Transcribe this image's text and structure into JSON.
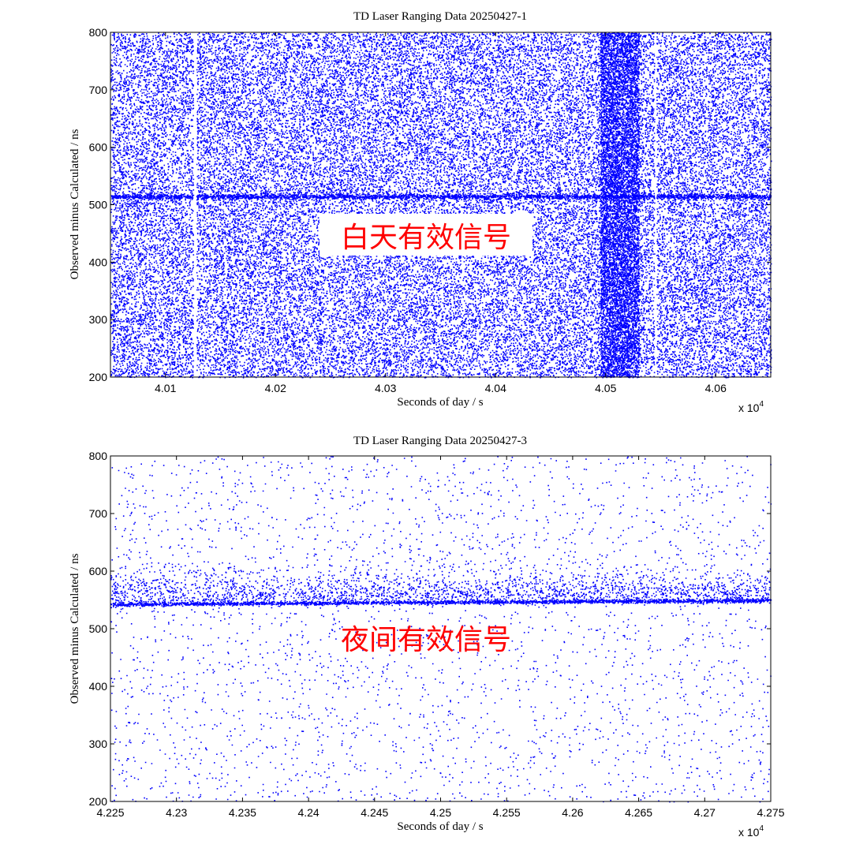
{
  "colors": {
    "points": "#0000ff",
    "annotation": "#ff0000",
    "annotation_bg": "#ffffff",
    "axes": "#000000"
  },
  "chart_data": [
    {
      "type": "scatter",
      "title": "TD Laser Ranging Data 20250427-1",
      "xlabel": "Seconds of day / s",
      "ylabel": "Observed minus Calculated / ns",
      "xlim": [
        40050,
        40650
      ],
      "ylim": [
        200,
        800
      ],
      "x_ticks": [
        40100,
        40200,
        40300,
        40400,
        40500,
        40600
      ],
      "x_tick_labels": [
        "4.01",
        "4.02",
        "4.03",
        "4.04",
        "4.05",
        "4.06"
      ],
      "y_ticks": [
        200,
        300,
        400,
        500,
        600,
        700,
        800
      ],
      "y_tick_labels": [
        "200",
        "300",
        "400",
        "500",
        "600",
        "700",
        "800"
      ],
      "x_exponent_label": "x 10",
      "x_exponent_power": "4",
      "grid": false,
      "annotation": "白天有效信号",
      "series": [
        {
          "role": "noise",
          "density": "dense",
          "gaps_x": [
            [
              40125,
              40128
            ],
            [
              40544,
              40546
            ]
          ],
          "denser_x_range": [
            40495,
            40530
          ]
        },
        {
          "role": "signal",
          "x_range": [
            40050,
            40650
          ],
          "y_start": 515,
          "y_end": 515
        }
      ]
    },
    {
      "type": "scatter",
      "title": "TD Laser Ranging Data 20250427-3",
      "xlabel": "Seconds of day / s",
      "ylabel": "Observed minus Calculated / ns",
      "xlim": [
        42250,
        42750
      ],
      "ylim": [
        200,
        800
      ],
      "x_ticks": [
        42250,
        42300,
        42350,
        42400,
        42450,
        42500,
        42550,
        42600,
        42650,
        42700,
        42750
      ],
      "x_tick_labels": [
        "4.225",
        "4.23",
        "4.235",
        "4.24",
        "4.245",
        "4.25",
        "4.255",
        "4.26",
        "4.265",
        "4.27",
        "4.275"
      ],
      "y_ticks": [
        200,
        300,
        400,
        500,
        600,
        700,
        800
      ],
      "y_tick_labels": [
        "200",
        "300",
        "400",
        "500",
        "600",
        "700",
        "800"
      ],
      "x_exponent_label": "x 10",
      "x_exponent_power": "4",
      "grid": false,
      "annotation": "夜间有效信号",
      "series": [
        {
          "role": "noise",
          "density": "sparse",
          "denser_above_y": 545
        },
        {
          "role": "signal",
          "x_range": [
            42250,
            42750
          ],
          "y_start": 543,
          "y_end": 550
        }
      ]
    }
  ]
}
